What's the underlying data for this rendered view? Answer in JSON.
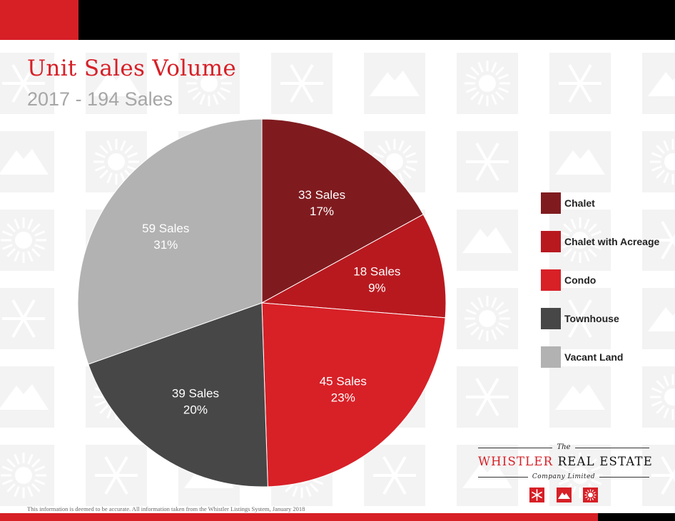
{
  "header": {
    "title": "Unit Sales Volume",
    "subtitle": "2017 - 194 Sales"
  },
  "colors": {
    "brand_red": "#d71f26",
    "header_black": "#000000",
    "chalet": "#7f1b1f",
    "chalet_with_acreage": "#b8191f",
    "condo": "#d82027",
    "townhouse": "#474747",
    "vacant_land": "#b2b2b2"
  },
  "chart_data": {
    "type": "pie",
    "title": "Unit Sales Volume",
    "subtitle": "2017 - 194 Sales",
    "total": 194,
    "legend_position": "right",
    "slices": [
      {
        "name": "Chalet",
        "value": 33,
        "percent": 17,
        "label": "33 Sales",
        "pct_label": "17%",
        "color": "#7f1b1f"
      },
      {
        "name": "Chalet with Acreage",
        "value": 18,
        "percent": 9,
        "label": "18 Sales",
        "pct_label": "9%",
        "color": "#b8191f"
      },
      {
        "name": "Condo",
        "value": 45,
        "percent": 23,
        "label": "45 Sales",
        "pct_label": "23%",
        "color": "#d82027"
      },
      {
        "name": "Townhouse",
        "value": 39,
        "percent": 20,
        "label": "39 Sales",
        "pct_label": "20%",
        "color": "#474747"
      },
      {
        "name": "Vacant Land",
        "value": 59,
        "percent": 31,
        "label": "59 Sales",
        "pct_label": "31%",
        "color": "#b2b2b2"
      }
    ]
  },
  "logo": {
    "the": "The",
    "main_red": "WHISTLER",
    "main_black": "REAL ESTATE",
    "company": "Company Limited",
    "icons": [
      "snowflake-icon",
      "mountain-icon",
      "sun-icon"
    ]
  },
  "footer": {
    "note": "This information is deemed to be accurate. All information taken from the Whistler Listings System, January 2018"
  }
}
